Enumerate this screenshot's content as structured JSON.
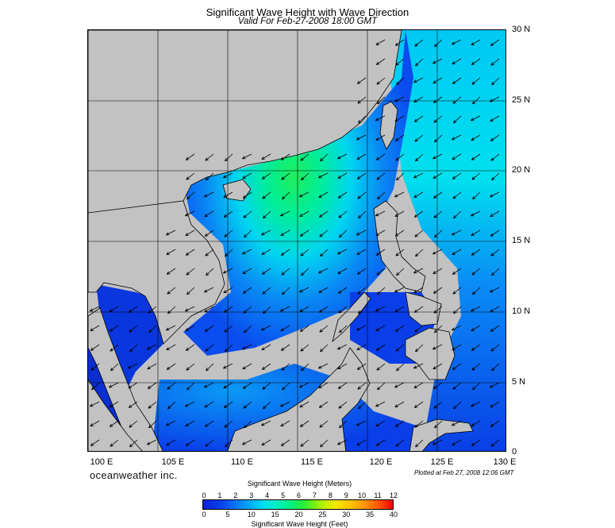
{
  "header": {
    "title": "Significant Wave Height with Wave Direction",
    "subtitle": "Valid For Feb-27-2008 18:00 GMT"
  },
  "map": {
    "lat_labels": [
      "30 N",
      "25 N",
      "20 N",
      "15 N",
      "10 N",
      "5 N",
      "0"
    ],
    "lon_labels": [
      "100 E",
      "105 E",
      "110 E",
      "115 E",
      "120 E",
      "125 E",
      "130 E"
    ],
    "land_color": "#c2c2c2",
    "wave_arrow_direction": "northeast monsoon, arrows pointing southwest"
  },
  "footer": {
    "brand": "oceanweather inc.",
    "plotted": "Plotted at Feb 27, 2008 12:06 GMT"
  },
  "colorbar": {
    "title_meters": "Significant Wave Height (Meters)",
    "title_feet": "Significant Wave Height (Feet)",
    "meters_ticks": [
      "0",
      "1",
      "2",
      "3",
      "4",
      "5",
      "6",
      "7",
      "8",
      "9",
      "10",
      "11",
      "12"
    ],
    "feet_ticks": [
      "0",
      "5",
      "10",
      "15",
      "20",
      "25",
      "30",
      "35",
      "40"
    ],
    "colors": [
      "#0b1fd8",
      "#0a7cf6",
      "#00e0ef",
      "#00f08c",
      "#6ef018",
      "#f4e600",
      "#ff8e00",
      "#f00000"
    ]
  }
}
